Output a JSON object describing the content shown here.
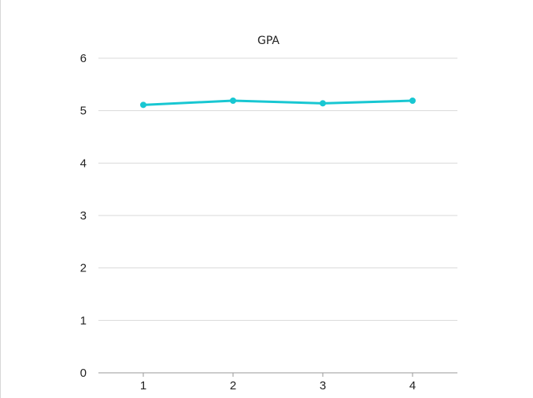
{
  "chart_data": {
    "type": "line",
    "title": "GPA",
    "xlabel": "",
    "ylabel": "",
    "categories": [
      "1",
      "2",
      "3",
      "4"
    ],
    "series": [
      {
        "values": [
          5.11,
          5.19,
          5.14,
          5.19
        ],
        "color": "#18c7d2"
      }
    ],
    "ylim": [
      0,
      6
    ],
    "yticks": [
      "0",
      "1",
      "2",
      "3",
      "4",
      "5",
      "6"
    ],
    "grid": true,
    "legend": "none"
  }
}
